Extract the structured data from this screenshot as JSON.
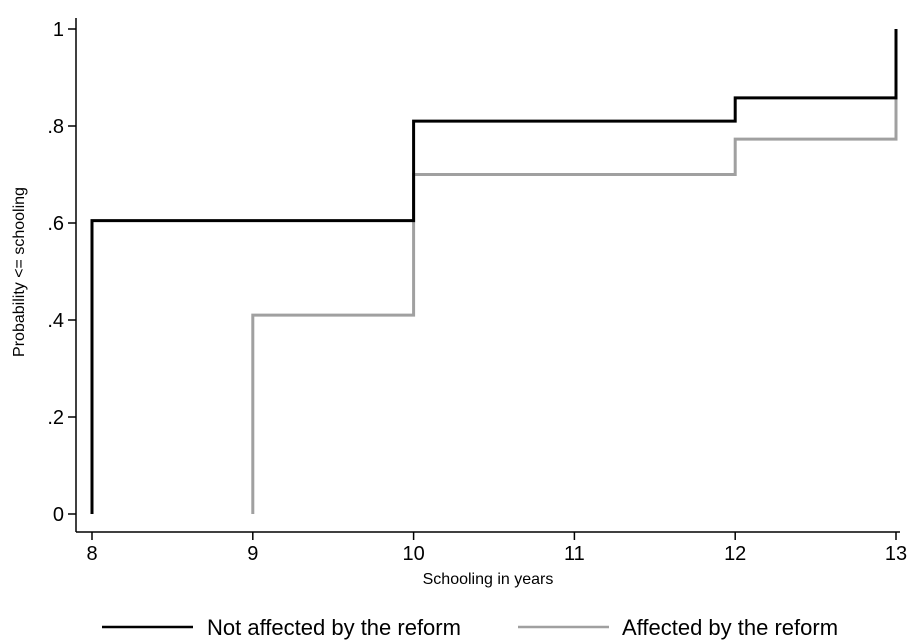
{
  "chart_data": {
    "type": "line",
    "title": "",
    "xlabel": "Schooling in years",
    "ylabel": "Probability <= schooling",
    "xlim": [
      8,
      13
    ],
    "ylim": [
      0,
      1
    ],
    "x_ticks": [
      8,
      9,
      10,
      11,
      12,
      13
    ],
    "x_tick_labels": [
      "8",
      "9",
      "10",
      "11",
      "12",
      "13"
    ],
    "y_ticks": [
      0,
      0.2,
      0.4,
      0.6,
      0.8,
      1
    ],
    "y_tick_labels": [
      "0",
      ".2",
      ".4",
      ".6",
      ".8",
      "1"
    ],
    "grid": false,
    "legend_position": "bottom",
    "series": [
      {
        "name": "Not affected by the reform",
        "color": "#000000",
        "step": true,
        "x": [
          8,
          8,
          10,
          10,
          12,
          12,
          13,
          13
        ],
        "y": [
          0,
          0.605,
          0.605,
          0.81,
          0.81,
          0.858,
          0.858,
          1
        ]
      },
      {
        "name": "Affected by the reform",
        "color": "#a0a0a0",
        "step": true,
        "x": [
          9,
          9,
          10,
          10,
          12,
          12,
          13,
          13
        ],
        "y": [
          0,
          0.41,
          0.41,
          0.7,
          0.7,
          0.773,
          0.773,
          1
        ]
      }
    ]
  }
}
